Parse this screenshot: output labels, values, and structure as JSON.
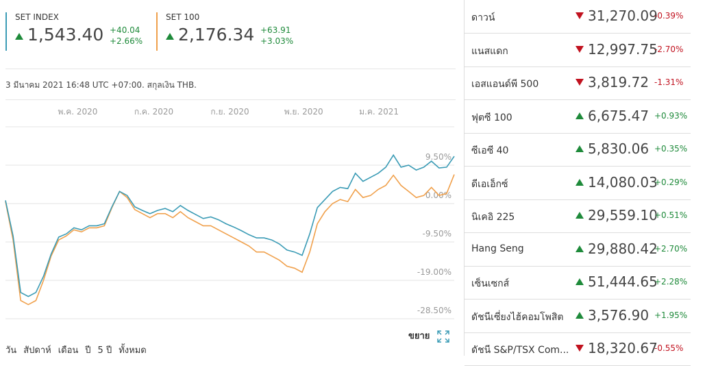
{
  "chart_data": {
    "type": "line",
    "series": [
      {
        "name": "SET INDEX",
        "color": "#3a9bb5",
        "values": [
          0.8,
          -8,
          -22,
          -23,
          -22,
          -18,
          -12.5,
          -8.3,
          -7.5,
          -6,
          -6.5,
          -5.5,
          -5.5,
          -5,
          -0.8,
          3,
          2,
          -0.8,
          -1.7,
          -2.5,
          -1.7,
          -1.2,
          -2,
          -0.5,
          -1.7,
          -2.7,
          -3.7,
          -3.3,
          -4,
          -5,
          -5.8,
          -6.7,
          -7.7,
          -8.5,
          -8.5,
          -9,
          -10,
          -11.5,
          -12,
          -12.8,
          -7.5,
          -1,
          1,
          3,
          4,
          3.7,
          7.5,
          5.5,
          6.5,
          7.5,
          9,
          12,
          9,
          9.5,
          8.3,
          9,
          10.5,
          8.8,
          9,
          11.7
        ]
      },
      {
        "name": "SET 100",
        "color": "#f0a04b",
        "values": [
          0.5,
          -9,
          -24,
          -25,
          -24,
          -19,
          -13,
          -9,
          -8,
          -6.5,
          -7,
          -6,
          -6,
          -5.5,
          -1,
          3,
          1.5,
          -1.5,
          -2.5,
          -3.5,
          -2.5,
          -2.5,
          -3.5,
          -2,
          -3.5,
          -4.5,
          -5.5,
          -5.5,
          -6.5,
          -7.5,
          -8.5,
          -9.5,
          -10.5,
          -12,
          -12,
          -13,
          -14,
          -15.5,
          -16,
          -17,
          -12,
          -5,
          -2,
          0,
          1,
          0.5,
          3.5,
          1.5,
          2,
          3.5,
          4.5,
          7,
          4.5,
          3,
          1.5,
          2,
          4,
          2,
          2.5,
          7.2
        ]
      }
    ],
    "xlim": [
      0,
      59
    ],
    "xticks": [
      {
        "value": 9.5,
        "label": "พ.ค. 2020"
      },
      {
        "value": 19.5,
        "label": "ก.ค. 2020"
      },
      {
        "value": 29.5,
        "label": "ก.ย. 2020"
      },
      {
        "value": 39.2,
        "label": "พ.ย. 2020"
      },
      {
        "value": 49.1,
        "label": "ม.ค. 2021"
      }
    ],
    "ylim": [
      -28.5,
      19
    ],
    "yticks": [
      {
        "value": 9.5,
        "label": "9.50%"
      },
      {
        "value": 0,
        "label": "0.00%"
      },
      {
        "value": -9.5,
        "label": "-9.50%"
      },
      {
        "value": -19,
        "label": "-19.00%"
      },
      {
        "value": -28.5,
        "label": "-28.50%"
      }
    ],
    "grid": true
  },
  "cards": [
    {
      "last": "1,543.40",
      "change": "+40.04",
      "change_pct": "+2.66%",
      "direction": "up"
    },
    {
      "last": "2,176.34",
      "change": "+63.91",
      "change_pct": "+3.03%",
      "direction": "up"
    }
  ],
  "timestamp": "3 มีนาคม 2021 16:48 UTC +07:00. สกุลเงิน THB.",
  "expand": "ขยาย",
  "periods": [
    "วัน",
    "สัปดาห์",
    "เดือน",
    "ปี",
    "5 ปี",
    "ทั้งหมด"
  ],
  "markets": [
    {
      "name": "ดาวน์",
      "value": "31,270.09",
      "change": "-0.39%",
      "direction": "down"
    },
    {
      "name": "แนสแดก",
      "value": "12,997.75",
      "change": "-2.70%",
      "direction": "down"
    },
    {
      "name": "เอสแอนด์พี 500",
      "value": "3,819.72",
      "change": "-1.31%",
      "direction": "down"
    },
    {
      "name": "ฟุตซี 100",
      "value": "6,675.47",
      "change": "+0.93%",
      "direction": "up"
    },
    {
      "name": "ซีเอซี 40",
      "value": "5,830.06",
      "change": "+0.35%",
      "direction": "up"
    },
    {
      "name": "ดีเอเอ็กซ์",
      "value": "14,080.03",
      "change": "+0.29%",
      "direction": "up"
    },
    {
      "name": "นิเคอิ 225",
      "value": "29,559.10",
      "change": "+0.51%",
      "direction": "up"
    },
    {
      "name": "Hang Seng",
      "value": "29,880.42",
      "change": "+2.70%",
      "direction": "up"
    },
    {
      "name": "เซ็นเซกส์",
      "value": "51,444.65",
      "change": "+2.28%",
      "direction": "up"
    },
    {
      "name": "ดัชนีเซี่ยงไฮ้คอมโพสิต",
      "value": "3,576.90",
      "change": "+1.95%",
      "direction": "up"
    },
    {
      "name": "ดัชนี S&P/TSX Com...",
      "value": "18,320.67",
      "change": "-0.55%",
      "direction": "down"
    }
  ]
}
